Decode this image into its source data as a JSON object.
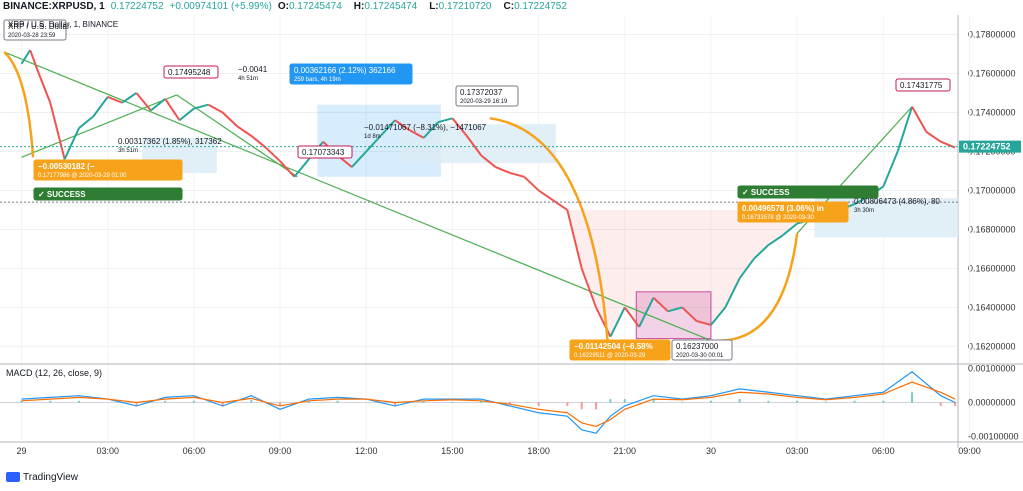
{
  "header": {
    "symbol": "BINANCE:XRPUSD, 1",
    "last": "0.17224752",
    "change": "+0.00974101 (+5.99%)",
    "open_label": "O:",
    "open": "0.17245474",
    "high_label": "H:",
    "high": "0.17245474",
    "low_label": "L:",
    "low": "0.17210720",
    "close_label": "C:",
    "close": "0.17224752"
  },
  "footer": {
    "brand": "TradingView"
  },
  "colors": {
    "bull": "#26a69a",
    "bear": "#ef5350",
    "green_line": "#4caf50",
    "orange": "#f7a21b",
    "blue": "#2196f3",
    "pink_box": "#c94a9c",
    "macd": "#2196f3",
    "signal": "#ff6d00"
  },
  "chart_data": [
    {
      "type": "line",
      "series_label": "XRP / U.S. Dollar, 1, BINANCE",
      "price_axis_ticks": [
        "0.17800000",
        "0.17600000",
        "0.17400000",
        "0.17200000",
        "0.17000000",
        "0.16800000",
        "0.16600000",
        "0.16400000",
        "0.16200000"
      ],
      "last_price_label": "0.17224752",
      "time_ticks": [
        "29",
        "03:00",
        "06:00",
        "09:00",
        "12:00",
        "15:00",
        "18:00",
        "21:00",
        "30",
        "03:00",
        "06:00",
        "09:00"
      ],
      "x_hours": [
        0,
        0.3,
        0.6,
        1.0,
        1.5,
        2.0,
        2.5,
        3.0,
        3.5,
        4.0,
        4.5,
        5.0,
        5.5,
        6.0,
        6.5,
        7.0,
        7.5,
        8.0,
        8.5,
        9.0,
        9.5,
        10.0,
        10.5,
        11.0,
        11.5,
        12.0,
        12.5,
        13.0,
        13.5,
        14.0,
        14.5,
        15.0,
        15.5,
        16.0,
        16.5,
        17.0,
        17.5,
        18.0,
        18.5,
        19.0,
        19.5,
        20.0,
        20.5,
        21.0,
        21.5,
        22.0,
        22.5,
        23.0,
        23.5,
        24.0,
        24.5,
        25.0,
        25.5,
        26.0,
        26.5,
        27.0,
        27.5,
        28.0,
        28.5,
        29.0,
        29.5,
        30.0,
        30.5,
        31.0,
        31.5,
        32.0,
        32.5
      ],
      "y_price": [
        0.1765,
        0.1772,
        0.176,
        0.1745,
        0.1716,
        0.1732,
        0.1738,
        0.1748,
        0.1745,
        0.175,
        0.1741,
        0.1747,
        0.1736,
        0.1742,
        0.1744,
        0.174,
        0.1733,
        0.1728,
        0.1722,
        0.1715,
        0.1707,
        0.1716,
        0.1725,
        0.1718,
        0.1712,
        0.172,
        0.1728,
        0.1736,
        0.1731,
        0.1727,
        0.1735,
        0.1737,
        0.1728,
        0.1718,
        0.1712,
        0.1709,
        0.1707,
        0.17,
        0.1695,
        0.169,
        0.166,
        0.164,
        0.1625,
        0.164,
        0.163,
        0.1645,
        0.1638,
        0.164,
        0.1633,
        0.1631,
        0.164,
        0.1655,
        0.1665,
        0.1672,
        0.1677,
        0.1683,
        0.1685,
        0.1686,
        0.169,
        0.1693,
        0.1697,
        0.1702,
        0.172,
        0.1743,
        0.173,
        0.1725,
        0.1722
      ],
      "ylim": [
        0.1612,
        0.179
      ],
      "xlim": [
        -0.75,
        32.6
      ],
      "annotations": [
        {
          "text": "XRP / U.S. Dollar",
          "sub": "2020-03-28 23:59"
        },
        {
          "text": "0.17495248"
        },
        {
          "text": "0.17073343"
        },
        {
          "text": "0.17372037",
          "sub": "2020-03-29 16:19"
        },
        {
          "text": "0.16237000",
          "sub": "2020-03-30 00:01"
        },
        {
          "text": "0.17431775"
        },
        {
          "text": "−0.00530182 (−",
          "sub": "0.17177986 @ 2020-03-29 01:00"
        },
        {
          "text": "−0.01142504 (−6.58%",
          "sub": "0.16229511 @ 2020-03-29"
        },
        {
          "text": "0.00496578 (3.06%) in",
          "sub": "0.16733578 @ 2020-03-30"
        },
        {
          "text": "✓ SUCCESS"
        },
        {
          "text": "✓ SUCCESS"
        },
        {
          "text": "0.00317362 (1.85%), 317362",
          "sub": "3h 51m"
        },
        {
          "text": "−0.0041",
          "sub": "4h 51m"
        },
        {
          "text": "0.00362166 (2.12%) 362166",
          "sub": "259 bars, 4h 19m"
        },
        {
          "text": "−0.01471067 (−8.31%), −1471067",
          "sub": "1d 8m"
        },
        {
          "text": "0.00806473 (4.86%), 80",
          "sub": "3h 30m"
        }
      ]
    },
    {
      "type": "line",
      "title": "MACD (12, 26, close, 9)",
      "axis_ticks": [
        "0.00100000",
        "0.00000000",
        "-0.00100000"
      ],
      "ylim": [
        -0.0011,
        0.0011
      ],
      "series": [
        {
          "name": "MACD",
          "x_hours": [
            0,
            1,
            2,
            3,
            4,
            5,
            6,
            7,
            8,
            9,
            10,
            11,
            12,
            13,
            14,
            15,
            16,
            17,
            18,
            19,
            19.5,
            20,
            20.5,
            21,
            22,
            23,
            24,
            25,
            26,
            27,
            28,
            29,
            30,
            31,
            32,
            32.5
          ],
          "values": [
            0.0001,
            0.00015,
            0.0002,
            0.0001,
            -0.0001,
            0.00015,
            0.0002,
            -0.0001,
            0.0002,
            -0.0002,
            0.0001,
            0.00015,
            0.0001,
            -0.0001,
            0.0001,
            0.0001,
            0.0001,
            -0.0001,
            -0.0003,
            -0.0004,
            -0.0008,
            -0.0009,
            -0.0004,
            -0.0001,
            0.0002,
            0.0001,
            0.0002,
            0.0004,
            0.0003,
            0.0002,
            0.0001,
            0.0002,
            0.0003,
            0.0009,
            0.0002,
            0.0
          ]
        },
        {
          "name": "Signal",
          "x_hours": [
            0,
            1,
            2,
            3,
            4,
            5,
            6,
            7,
            8,
            9,
            10,
            11,
            12,
            13,
            14,
            15,
            16,
            17,
            18,
            19,
            19.5,
            20,
            20.5,
            21,
            22,
            23,
            24,
            25,
            26,
            27,
            28,
            29,
            30,
            31,
            32,
            32.5
          ],
          "values": [
            5e-05,
            0.0001,
            0.00015,
            0.0001,
            0.0,
            0.0001,
            0.00015,
            0.0,
            0.00012,
            -0.0001,
            5e-05,
            0.0001,
            0.0001,
            0.0,
            5e-05,
            8e-05,
            5e-05,
            -5e-05,
            -0.0002,
            -0.0003,
            -0.0006,
            -0.0007,
            -0.0005,
            -0.0002,
            0.0001,
            8e-05,
            0.00015,
            0.0003,
            0.00025,
            0.00015,
            8e-05,
            0.00015,
            0.00025,
            0.0006,
            0.0003,
            0.0001
          ]
        }
      ]
    }
  ]
}
